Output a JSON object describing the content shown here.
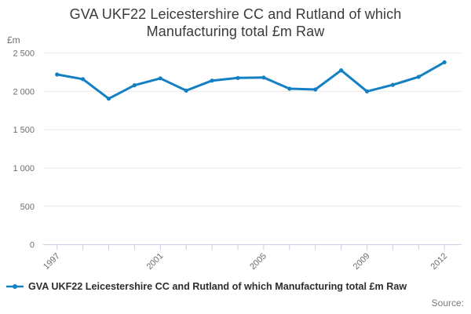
{
  "title": {
    "line1": "GVA UKF22 Leicestershire CC and Rutland of which",
    "line2": "Manufacturing total £m Raw"
  },
  "y_axis_unit": "£m",
  "source_label": "Source:",
  "legend": {
    "label": "GVA UKF22 Leicestershire CC and Rutland of which Manufacturing total £m Raw"
  },
  "colors": {
    "line": "#1380c3",
    "grid": "#e8e8e8",
    "axis": "#c4cee2",
    "tick_text": "#6e6e6e",
    "title_text": "#3a3a3a",
    "legend_text": "#2d2d2d",
    "source_text": "#7a7a7a",
    "background": "#ffffff"
  },
  "chart_data": {
    "type": "line",
    "title": "GVA UKF22 Leicestershire CC and Rutland of which Manufacturing total £m Raw",
    "ylabel": "£m",
    "xlabel": "",
    "x": [
      1997,
      1998,
      1999,
      2000,
      2001,
      2002,
      2003,
      2004,
      2005,
      2006,
      2007,
      2008,
      2009,
      2010,
      2011,
      2012
    ],
    "series": [
      {
        "name": "GVA UKF22 Leicestershire CC and Rutland of which Manufacturing total £m Raw",
        "values": [
          2220,
          2160,
          1905,
          2080,
          2170,
          2010,
          2140,
          2175,
          2180,
          2035,
          2025,
          2275,
          2000,
          2085,
          2190,
          2380
        ]
      }
    ],
    "ylim": [
      0,
      2500
    ],
    "yticks": [
      {
        "value": 0,
        "label": "0"
      },
      {
        "value": 500,
        "label": "500"
      },
      {
        "value": 1000,
        "label": "1 000"
      },
      {
        "value": 1500,
        "label": "1 500"
      },
      {
        "value": 2000,
        "label": "2 000"
      },
      {
        "value": 2500,
        "label": "2 500"
      }
    ],
    "xtick_labels_shown": [
      "1997",
      "2001",
      "2005",
      "2009",
      "2012"
    ],
    "grid": "horizontal",
    "legend_position": "bottom-left",
    "marker": "dot"
  }
}
